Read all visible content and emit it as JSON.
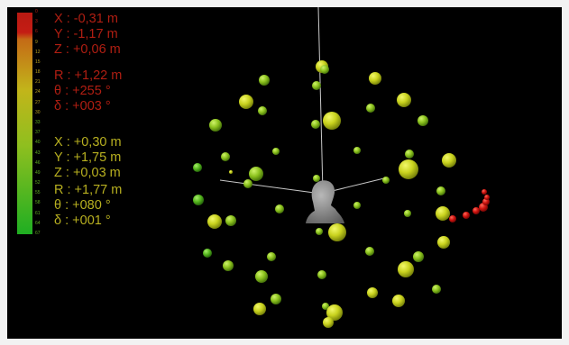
{
  "scale": {
    "ticks": [
      "0",
      "3",
      "6",
      "9",
      "12",
      "15",
      "18",
      "21",
      "24",
      "27",
      "30",
      "33",
      "37",
      "40",
      "43",
      "46",
      "49",
      "52",
      "55",
      "58",
      "61",
      "64",
      "67"
    ],
    "colors": {
      "top": "#cc1e16",
      "mid": "#c2b51a",
      "bottom": "#22b322"
    }
  },
  "source_a": {
    "color": "#b01e12",
    "lines": [
      "X : -0,31 m",
      "Y : -1,17 m",
      "Z : +0,06 m"
    ],
    "polar": [
      "R : +1,22 m",
      "θ : +255 °",
      "δ : +003 °"
    ]
  },
  "source_b": {
    "color": "#b8b020",
    "lines": [
      "X : +0,30 m",
      "Y : +1,75 m",
      "Z : +0,03 m"
    ],
    "polar": [
      "R : +1,77 m",
      "θ : +080 °",
      "δ : +001 °"
    ]
  },
  "scene": {
    "head_icon": "listener-head-icon"
  }
}
